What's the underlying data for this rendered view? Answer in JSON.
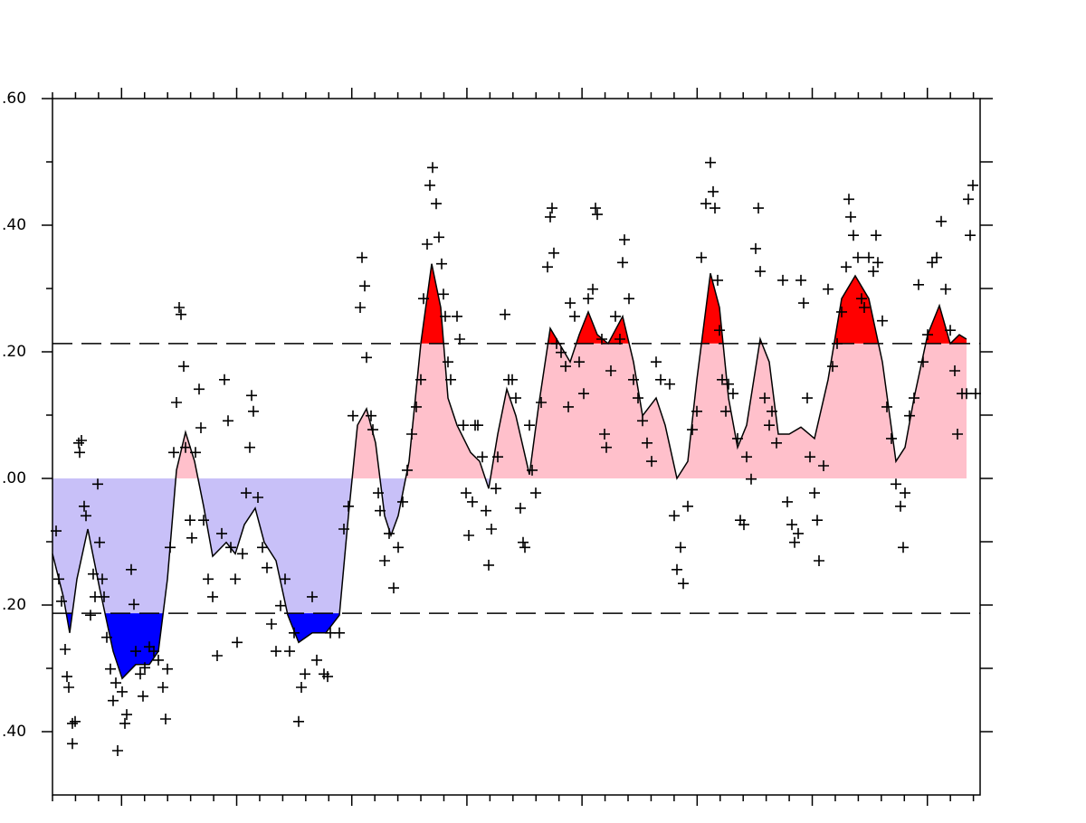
{
  "chart_data": {
    "type": "line",
    "xlim": [
      0,
      1025
    ],
    "ylim": [
      -0.5,
      0.6
    ],
    "yticks": [
      {
        "value": 0.6,
        "label": ".60"
      },
      {
        "value": 0.4,
        "label": ".40"
      },
      {
        "value": 0.2,
        "label": ".20"
      },
      {
        "value": 0,
        "label": ".00"
      },
      {
        "value": -0.2,
        "label": ".20"
      },
      {
        "value": -0.4,
        "label": ".40"
      }
    ],
    "thresholds": [
      0.213,
      -0.213
    ],
    "colors": {
      "above": "#ff0000",
      "positive": "#ffc0cb",
      "negative": "#c8c0f8",
      "below": "#0000ff",
      "line": "#000000",
      "points": "#000000"
    },
    "line": {
      "x": [
        0,
        12,
        19,
        27,
        39,
        52,
        67,
        77,
        92,
        107,
        117,
        127,
        137,
        147,
        157,
        167,
        177,
        192,
        202,
        212,
        224,
        234,
        247,
        260,
        272,
        287,
        302,
        317,
        327,
        337,
        347,
        357,
        367,
        374,
        382,
        394,
        407,
        419,
        429,
        437,
        447,
        462,
        472,
        482,
        492,
        502,
        512,
        527,
        537,
        550,
        560,
        572,
        582,
        592,
        602,
        614,
        630,
        642,
        652,
        667,
        677,
        690,
        702,
        712,
        727,
        737,
        747,
        757,
        767,
        782,
        792,
        802,
        814,
        827,
        842,
        857,
        872,
        887,
        902,
        917,
        932,
        942,
        952,
        967,
        980,
        992,
        1002,
        1010
      ],
      "values": [
        -0.119,
        -0.187,
        -0.244,
        -0.159,
        -0.08,
        -0.173,
        -0.273,
        -0.316,
        -0.294,
        -0.294,
        -0.273,
        -0.159,
        0.013,
        0.073,
        0.027,
        -0.044,
        -0.123,
        -0.101,
        -0.119,
        -0.073,
        -0.047,
        -0.101,
        -0.13,
        -0.216,
        -0.259,
        -0.244,
        -0.244,
        -0.216,
        -0.059,
        0.084,
        0.11,
        0.056,
        -0.059,
        -0.09,
        -0.059,
        0.027,
        0.213,
        0.339,
        0.27,
        0.127,
        0.084,
        0.041,
        0.027,
        -0.016,
        0.07,
        0.141,
        0.099,
        0.006,
        0.113,
        0.237,
        0.213,
        0.184,
        0.227,
        0.263,
        0.227,
        0.213,
        0.256,
        0.184,
        0.099,
        0.127,
        0.084,
        0,
        0.027,
        0.156,
        0.324,
        0.27,
        0.127,
        0.049,
        0.084,
        0.22,
        0.184,
        0.07,
        0.07,
        0.081,
        0.063,
        0.156,
        0.284,
        0.32,
        0.284,
        0.184,
        0.027,
        0.049,
        0.127,
        0.227,
        0.273,
        0.213,
        0.227,
        0.22
      ]
    },
    "points": {
      "x": [
        4,
        7,
        10,
        14,
        16,
        18,
        22,
        22,
        25,
        29,
        32,
        30,
        35,
        37,
        42,
        45,
        47,
        50,
        52,
        55,
        57,
        60,
        64,
        67,
        70,
        72,
        77,
        80,
        82,
        87,
        90,
        92,
        97,
        100,
        102,
        107,
        112,
        117,
        122,
        125,
        127,
        130,
        134,
        137,
        140,
        142,
        145,
        147,
        152,
        154,
        158,
        162,
        164,
        167,
        172,
        177,
        182,
        187,
        190,
        194,
        197,
        202,
        204,
        210,
        214,
        218,
        220,
        222,
        227,
        232,
        237,
        242,
        247,
        252,
        257,
        262,
        267,
        272,
        275,
        279,
        287,
        292,
        300,
        304,
        307,
        317,
        322,
        327,
        332,
        340,
        342,
        345,
        347,
        352,
        354,
        360,
        362,
        367,
        372,
        377,
        382,
        387,
        392,
        397,
        402,
        407,
        410,
        414,
        417,
        420,
        424,
        427,
        430,
        432,
        434,
        437,
        440,
        447,
        450,
        454,
        457,
        460,
        464,
        467,
        470,
        475,
        479,
        482,
        485,
        490,
        492,
        500,
        504,
        508,
        512,
        517,
        520,
        522,
        527,
        530,
        534,
        540,
        547,
        550,
        552,
        554,
        557,
        562,
        567,
        570,
        572,
        577,
        582,
        587,
        592,
        597,
        600,
        602,
        607,
        610,
        612,
        617,
        622,
        627,
        630,
        632,
        637,
        642,
        647,
        652,
        657,
        662,
        667,
        672,
        682,
        687,
        690,
        694,
        697,
        702,
        707,
        712,
        717,
        722,
        727,
        730,
        732,
        735,
        737,
        740,
        744,
        747,
        752,
        757,
        760,
        764,
        767,
        772,
        777,
        780,
        782,
        787,
        792,
        795,
        800,
        807,
        812,
        817,
        820,
        824,
        827,
        830,
        834,
        837,
        842,
        845,
        847,
        852,
        857,
        862,
        867,
        872,
        877,
        880,
        882,
        885,
        890,
        894,
        897,
        902,
        907,
        910,
        912,
        917,
        922,
        927,
        932,
        937,
        940,
        942,
        947,
        952,
        957,
        962,
        967,
        972,
        977,
        982,
        987,
        992,
        997,
        1000,
        1005,
        1010,
        1012,
        1014,
        1017,
        1020
      ],
      "values": [
        -0.083,
        -0.159,
        -0.194,
        -0.27,
        -0.313,
        -0.33,
        -0.387,
        -0.419,
        -0.384,
        0.056,
        0.06,
        0.041,
        -0.044,
        -0.059,
        -0.216,
        -0.151,
        -0.187,
        -0.009,
        -0.101,
        -0.159,
        -0.187,
        -0.251,
        -0.301,
        -0.351,
        -0.323,
        -0.43,
        -0.337,
        -0.387,
        -0.373,
        -0.144,
        -0.199,
        -0.273,
        -0.309,
        -0.344,
        -0.299,
        -0.266,
        -0.273,
        -0.287,
        -0.33,
        -0.38,
        -0.301,
        -0.109,
        0.041,
        0.12,
        0.27,
        0.259,
        0.177,
        0.049,
        -0.066,
        -0.094,
        0.041,
        0.141,
        0.08,
        -0.066,
        -0.159,
        -0.187,
        -0.28,
        -0.087,
        0.156,
        0.091,
        -0.109,
        -0.159,
        -0.259,
        -0.119,
        -0.023,
        0.049,
        0.131,
        0.106,
        -0.03,
        -0.109,
        -0.141,
        -0.23,
        -0.273,
        -0.201,
        -0.159,
        -0.273,
        -0.244,
        -0.384,
        -0.33,
        -0.309,
        -0.187,
        -0.287,
        -0.309,
        -0.313,
        -0.244,
        -0.244,
        -0.08,
        -0.044,
        0.099,
        0.27,
        0.349,
        0.304,
        0.191,
        0.099,
        0.077,
        -0.023,
        -0.051,
        -0.13,
        -0.087,
        -0.173,
        -0.109,
        -0.037,
        0.013,
        0.07,
        0.113,
        0.156,
        0.284,
        0.37,
        0.463,
        0.491,
        0.434,
        0.381,
        0.339,
        0.291,
        0.256,
        0.184,
        0.156,
        0.256,
        0.22,
        0.084,
        -0.023,
        -0.09,
        -0.037,
        0.084,
        0.084,
        0.034,
        -0.051,
        -0.137,
        -0.08,
        -0.016,
        0.034,
        0.259,
        0.156,
        0.156,
        0.127,
        -0.047,
        -0.101,
        -0.109,
        0.084,
        0.013,
        -0.023,
        0.12,
        0.334,
        0.413,
        0.427,
        0.356,
        0.213,
        0.199,
        0.177,
        0.113,
        0.277,
        0.256,
        0.184,
        0.134,
        0.284,
        0.299,
        0.427,
        0.417,
        0.22,
        0.07,
        0.049,
        0.17,
        0.256,
        0.22,
        0.341,
        0.377,
        0.284,
        0.156,
        0.127,
        0.091,
        0.056,
        0.027,
        0.184,
        0.156,
        0.149,
        -0.059,
        -0.144,
        -0.109,
        -0.166,
        -0.044,
        0.077,
        0.106,
        0.349,
        0.434,
        0.499,
        0.453,
        0.427,
        0.313,
        0.234,
        0.156,
        0.106,
        0.149,
        0.134,
        0.063,
        -0.066,
        -0.073,
        0.034,
        -0.001,
        0.363,
        0.427,
        0.327,
        0.127,
        0.084,
        0.106,
        0.056,
        0.313,
        -0.037,
        -0.073,
        -0.101,
        -0.087,
        0.313,
        0.277,
        0.127,
        0.034,
        -0.023,
        -0.066,
        -0.13,
        0.02,
        0.299,
        0.177,
        0.213,
        0.263,
        0.334,
        0.441,
        0.413,
        0.384,
        0.349,
        0.284,
        0.27,
        0.349,
        0.327,
        0.384,
        0.341,
        0.249,
        0.113,
        0.063,
        -0.009,
        -0.044,
        -0.109,
        -0.023,
        0.099,
        0.127,
        0.306,
        0.184,
        0.227,
        0.341,
        0.349,
        0.406,
        0.299,
        0.234,
        0.17,
        0.07,
        0.134,
        0.134,
        0.441,
        0.384,
        0.463,
        0.134
      ]
    }
  }
}
